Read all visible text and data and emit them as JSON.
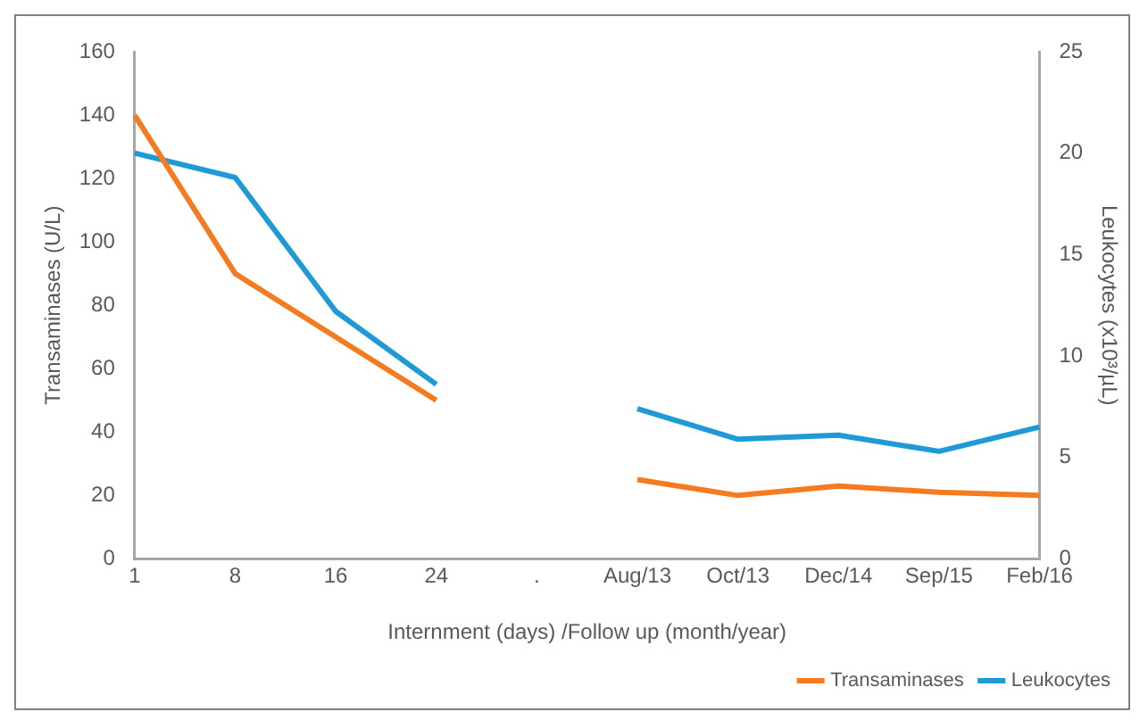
{
  "chart_data": {
    "type": "line",
    "xlabel": "Internment (days) /Follow up (month/year)",
    "ylabel": "Transaminases (U/L)",
    "y2label": "Leukocytes (x10³/µL)",
    "categories": [
      "1",
      "8",
      "16",
      "24",
      ".",
      "Aug/13",
      "Oct/13",
      "Dec/14",
      "Sep/15",
      "Feb/16"
    ],
    "series": [
      {
        "name": "Transaminases",
        "color": "#f47b20",
        "values": [
          140,
          90,
          70,
          50,
          null,
          25,
          20,
          23,
          21,
          20
        ]
      },
      {
        "name": "Leukocytes",
        "color": "#1e9ad6",
        "axis": "y2",
        "values": [
          20,
          18.8,
          12.2,
          8.6,
          null,
          7.4,
          5.9,
          6.1,
          5.3,
          6.5
        ]
      }
    ],
    "ylim": [
      0,
      160
    ],
    "yticks": [
      0,
      20,
      40,
      60,
      80,
      100,
      120,
      140,
      160
    ],
    "y2lim": [
      0,
      25
    ],
    "y2ticks": [
      0,
      5,
      10,
      15,
      20,
      25
    ],
    "grid": false,
    "legend": "bottom right",
    "marker": "none",
    "line_style": "solid"
  }
}
